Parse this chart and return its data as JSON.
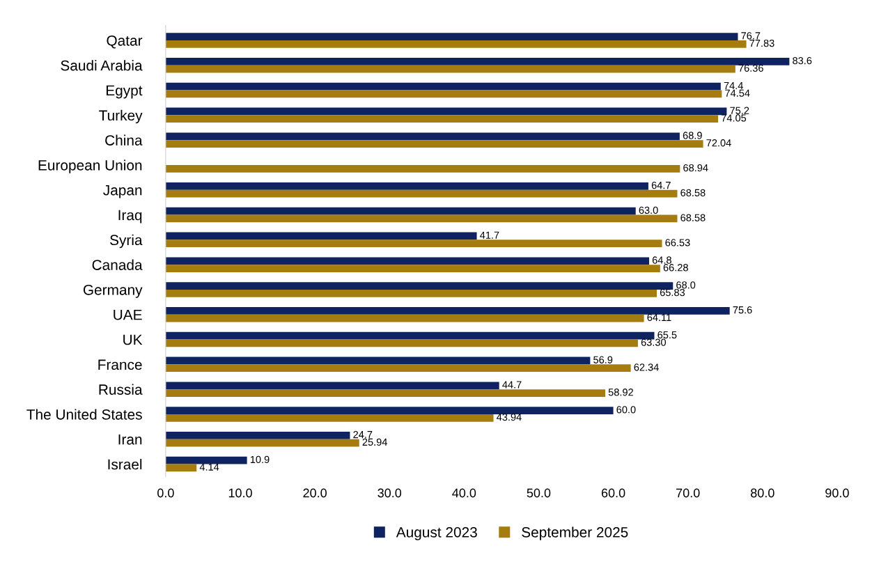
{
  "chart_data": {
    "type": "bar",
    "orientation": "horizontal",
    "categories": [
      "Qatar",
      "Saudi Arabia",
      "Egypt",
      "Turkey",
      "China",
      "European Union",
      "Japan",
      "Iraq",
      "Syria",
      "Canada",
      "Germany",
      "UAE",
      "UK",
      "France",
      "Russia",
      "The United States",
      "Iran",
      "Israel"
    ],
    "series": [
      {
        "name": "August 2023",
        "color": "#0f2360",
        "values": [
          76.7,
          83.6,
          74.4,
          75.2,
          68.9,
          null,
          64.7,
          63.0,
          41.7,
          64.8,
          68.0,
          75.6,
          65.5,
          56.9,
          44.7,
          60.0,
          24.7,
          10.9
        ],
        "value_labels": [
          "76.7",
          "83.6",
          "74.4",
          "75.2",
          "68.9",
          null,
          "64.7",
          "63.0",
          "41.7",
          "64.8",
          "68.0",
          "75.6",
          "65.5",
          "56.9",
          "44.7",
          "60.0",
          "24.7",
          "10.9"
        ]
      },
      {
        "name": "September 2025",
        "color": "#a57c10",
        "values": [
          77.83,
          76.36,
          74.54,
          74.05,
          72.04,
          68.94,
          68.58,
          68.58,
          66.53,
          66.28,
          65.83,
          64.11,
          63.3,
          62.34,
          58.92,
          43.94,
          25.94,
          4.14
        ],
        "value_labels": [
          "77.83",
          "76.36",
          "74.54",
          "74.05",
          "72.04",
          "68.94",
          "68.58",
          "68.58",
          "66.53",
          "66.28",
          "65.83",
          "64.11",
          "63.30",
          "62.34",
          "58.92",
          "43.94",
          "25.94",
          "4.14"
        ]
      }
    ],
    "xlim": [
      0,
      90
    ],
    "xticks": [
      {
        "value": 0,
        "label": "0.0"
      },
      {
        "value": 10,
        "label": "10.0"
      },
      {
        "value": 20,
        "label": "20.0"
      },
      {
        "value": 30,
        "label": "30.0"
      },
      {
        "value": 40,
        "label": "40.0"
      },
      {
        "value": 50,
        "label": "50.0"
      },
      {
        "value": 60,
        "label": "60.0"
      },
      {
        "value": 70,
        "label": "70.0"
      },
      {
        "value": 80,
        "label": "80.0"
      },
      {
        "value": 90,
        "label": "90.0"
      }
    ],
    "grid": false,
    "legend": "bottom"
  }
}
